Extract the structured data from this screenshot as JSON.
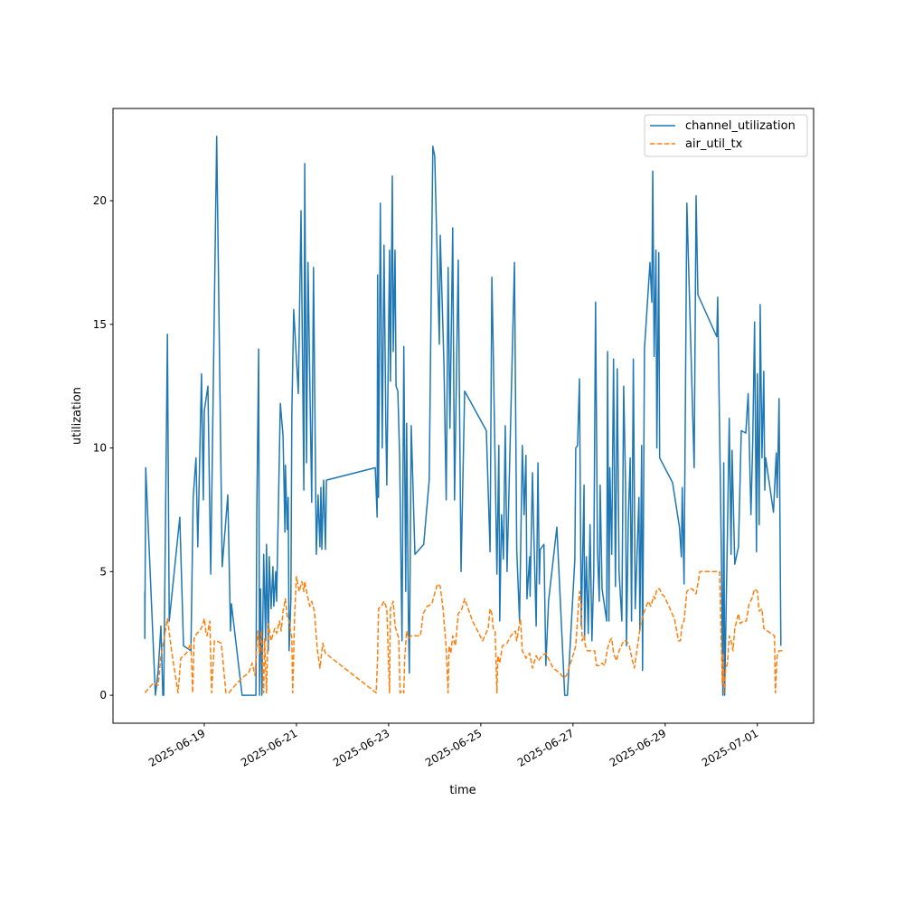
{
  "chart_data": {
    "type": "line",
    "title": "",
    "xlabel": "time",
    "ylabel": "utilization",
    "x_unit": "days since 2025-06-19 00:00",
    "xlim": [
      -1.98,
      13.22
    ],
    "ylim": [
      -1.13,
      23.73
    ],
    "grid": false,
    "legend_position": "top-right",
    "x_ticks": [
      {
        "value": 0,
        "label": "2025-06-19"
      },
      {
        "value": 2,
        "label": "2025-06-21"
      },
      {
        "value": 4,
        "label": "2025-06-23"
      },
      {
        "value": 6,
        "label": "2025-06-25"
      },
      {
        "value": 8,
        "label": "2025-06-27"
      },
      {
        "value": 10,
        "label": "2025-06-29"
      },
      {
        "value": 12,
        "label": "2025-07-01"
      }
    ],
    "y_ticks": [
      {
        "value": 0,
        "label": "0"
      },
      {
        "value": 5,
        "label": "5"
      },
      {
        "value": 10,
        "label": "10"
      },
      {
        "value": 15,
        "label": "15"
      },
      {
        "value": 20,
        "label": "20"
      }
    ],
    "series": [
      {
        "name": "channel_utilization",
        "color": "#1f77b4",
        "dash": "solid",
        "x": [
          -1.29,
          -1.29,
          -1.27,
          -1.06,
          -1.0,
          -0.94,
          -0.9,
          -0.88,
          -0.8,
          -0.76,
          -0.53,
          -0.45,
          -0.29,
          -0.24,
          -0.18,
          -0.14,
          -0.06,
          -0.02,
          0,
          0.08,
          0.14,
          0.27,
          0.39,
          0.51,
          0.57,
          0.59,
          0.82,
          1.12,
          1.14,
          1.18,
          1.2,
          1.22,
          1.25,
          1.29,
          1.33,
          1.35,
          1.39,
          1.41,
          1.45,
          1.49,
          1.51,
          1.55,
          1.57,
          1.65,
          1.71,
          1.75,
          1.76,
          1.8,
          1.82,
          1.84,
          1.88,
          1.9,
          1.94,
          2.04,
          2.1,
          2.16,
          2.18,
          2.22,
          2.25,
          2.33,
          2.37,
          2.43,
          2.47,
          2.51,
          2.53,
          2.55,
          2.59,
          2.63,
          2.65,
          3.71,
          3.75,
          3.76,
          3.78,
          3.82,
          3.86,
          3.9,
          3.94,
          3.96,
          4.02,
          4.04,
          4.08,
          4.1,
          4.14,
          4.16,
          4.2,
          4.24,
          4.29,
          4.33,
          4.37,
          4.39,
          4.43,
          4.45,
          4.49,
          4.57,
          4.76,
          4.88,
          4.96,
          5.0,
          5.1,
          5.12,
          5.2,
          5.25,
          5.29,
          5.33,
          5.39,
          5.43,
          5.51,
          5.57,
          5.65,
          6.12,
          6.2,
          6.24,
          6.27,
          6.35,
          6.39,
          6.41,
          6.45,
          6.49,
          6.53,
          6.57,
          6.73,
          6.78,
          6.84,
          6.9,
          6.94,
          6.98,
          7.0,
          7.06,
          7.07,
          7.12,
          7.14,
          7.2,
          7.24,
          7.27,
          7.29,
          7.37,
          7.41,
          7.47,
          7.65,
          7.82,
          7.88,
          8.04,
          8.06,
          8.1,
          8.14,
          8.18,
          8.24,
          8.25,
          8.29,
          8.33,
          8.37,
          8.41,
          8.45,
          8.49,
          8.53,
          8.57,
          8.59,
          8.63,
          8.73,
          8.75,
          8.78,
          8.8,
          8.84,
          8.88,
          8.92,
          8.96,
          9.0,
          9.06,
          9.1,
          9.14,
          9.16,
          9.2,
          9.24,
          9.27,
          9.31,
          9.35,
          9.43,
          9.45,
          9.49,
          9.51,
          9.55,
          9.67,
          9.71,
          9.73,
          9.76,
          9.8,
          9.82,
          9.86,
          9.88,
          10.16,
          10.31,
          10.35,
          10.37,
          10.41,
          10.47,
          10.63,
          10.67,
          10.71,
          11.12,
          11.14,
          11.22,
          11.25,
          11.27,
          11.29,
          11.35,
          11.39,
          11.43,
          11.45,
          11.51,
          11.59,
          11.65,
          11.75,
          11.8,
          11.86,
          11.9,
          11.94,
          11.98,
          12.0,
          12.04,
          12.06,
          12.1,
          12.14,
          12.16,
          12.18,
          12.35,
          12.41,
          12.43,
          12.47,
          12.51
        ],
        "y": [
          4.2,
          2.3,
          9.2,
          0,
          1,
          2.8,
          0,
          0,
          14.6,
          3,
          7.2,
          2,
          1.8,
          8,
          9.6,
          6,
          13,
          7.9,
          11.5,
          12.5,
          4.9,
          22.6,
          5.2,
          8.1,
          2.6,
          3.7,
          0,
          0,
          7.5,
          14,
          0,
          4.3,
          0,
          5.7,
          2.2,
          6.1,
          1.8,
          5.6,
          3.5,
          5.2,
          3.6,
          5,
          3.8,
          11.8,
          10.5,
          6.6,
          9.3,
          6.7,
          8,
          1.8,
          3.9,
          11.3,
          15.6,
          12.2,
          19.6,
          8.3,
          21.5,
          9.4,
          17.5,
          7.8,
          17.3,
          5.7,
          8.1,
          6,
          8.4,
          5.9,
          8.7,
          5.9,
          8.7,
          9.2,
          7.2,
          17,
          8,
          19.9,
          10,
          18.2,
          11,
          8.5,
          18,
          12.7,
          21,
          13.9,
          18,
          12.5,
          12.3,
          9.6,
          2.2,
          14.1,
          4.2,
          11,
          3,
          0.9,
          10.9,
          5.7,
          6.1,
          8.7,
          22.2,
          21.8,
          14.2,
          18.6,
          13.4,
          7.9,
          17.3,
          10.8,
          18.9,
          7.9,
          17.6,
          5,
          12.3,
          10.7,
          5.8,
          16.9,
          14,
          4.9,
          10.1,
          3,
          7.3,
          5.5,
          10.9,
          5,
          17.5,
          5.9,
          3,
          10.1,
          7.3,
          9.7,
          3.9,
          5.6,
          4,
          9,
          7.3,
          2.8,
          9.4,
          4.5,
          5.9,
          6.1,
          1.2,
          3.8,
          6.8,
          0,
          0,
          5.5,
          10,
          10.1,
          12.8,
          2.8,
          8.5,
          2.3,
          5.6,
          2.5,
          6.9,
          2.2,
          4.9,
          15.9,
          5.9,
          3.8,
          8.5,
          4.3,
          3,
          13.9,
          3,
          9.2,
          5.7,
          13.6,
          4.4,
          13.2,
          5,
          3,
          12.5,
          8.5,
          2,
          7.1,
          9.6,
          3,
          13.6,
          3.5,
          8,
          2.6,
          10.1,
          1,
          14,
          17.5,
          15.9,
          21.2,
          13.7,
          18,
          10,
          17.9,
          9.6,
          8.6,
          6.8,
          5.6,
          8.4,
          4.5,
          19.9,
          9.2,
          20.2,
          16.2,
          14.5,
          16.1,
          5.7,
          0,
          9.4,
          0,
          6.6,
          11.2,
          5.7,
          9.9,
          5.3,
          6,
          10.7,
          10.6,
          12.2,
          7.3,
          10.3,
          15.1,
          5.8,
          13,
          6.9,
          15.8,
          9.6,
          13.1,
          8.3,
          9.6,
          7.4,
          9.8,
          8,
          12,
          2
        ]
      },
      {
        "name": "air_util_tx",
        "color": "#ff7f0e",
        "dash": "dashed",
        "x": [
          -1.29,
          -1.1,
          -1.0,
          -0.94,
          -0.88,
          -0.8,
          -0.71,
          -0.57,
          -0.51,
          -0.39,
          -0.29,
          -0.25,
          -0.22,
          -0.16,
          -0.1,
          -0.04,
          0,
          0.04,
          0.06,
          0.12,
          0.16,
          0.22,
          0.27,
          0.37,
          0.47,
          0.53,
          0.67,
          0.82,
          0.96,
          1.04,
          1.1,
          1.16,
          1.2,
          1.24,
          1.29,
          1.31,
          1.35,
          1.39,
          1.45,
          1.53,
          1.57,
          1.63,
          1.67,
          1.71,
          1.76,
          1.8,
          1.84,
          1.9,
          1.92,
          1.96,
          2.0,
          2.06,
          2.12,
          2.16,
          2.18,
          2.24,
          2.29,
          2.33,
          2.39,
          2.45,
          2.51,
          2.57,
          2.63,
          3.73,
          3.76,
          3.78,
          3.84,
          3.9,
          3.96,
          4.02,
          4.04,
          4.1,
          4.14,
          4.22,
          4.25,
          4.31,
          4.33,
          4.35,
          4.39,
          4.43,
          4.49,
          4.69,
          4.75,
          4.84,
          4.94,
          4.98,
          5.06,
          5.12,
          5.18,
          5.25,
          5.29,
          5.31,
          5.35,
          5.39,
          5.45,
          5.51,
          5.59,
          5.65,
          5.82,
          6.04,
          6.16,
          6.2,
          6.24,
          6.27,
          6.31,
          6.35,
          6.37,
          6.41,
          6.47,
          6.57,
          6.65,
          6.75,
          6.78,
          6.86,
          6.9,
          6.98,
          7.06,
          7.12,
          7.2,
          7.25,
          7.33,
          7.41,
          7.57,
          7.71,
          7.8,
          7.86,
          8.0,
          8.06,
          8.14,
          8.18,
          8.2,
          8.24,
          8.27,
          8.31,
          8.47,
          8.51,
          8.57,
          8.63,
          8.69,
          8.75,
          8.8,
          8.84,
          8.88,
          8.94,
          9.0,
          9.1,
          9.16,
          9.22,
          9.29,
          9.33,
          9.37,
          9.47,
          9.53,
          9.63,
          9.69,
          9.75,
          9.78,
          9.82,
          9.88,
          9.92,
          9.98,
          10.08,
          10.2,
          10.29,
          10.33,
          10.37,
          10.41,
          10.47,
          10.53,
          10.59,
          10.67,
          10.71,
          10.75,
          10.86,
          11.1,
          11.18,
          11.24,
          11.25,
          11.27,
          11.31,
          11.35,
          11.39,
          11.43,
          11.47,
          11.51,
          11.55,
          11.59,
          11.63,
          11.69,
          11.76,
          11.82,
          11.88,
          11.94,
          12.0,
          12.04,
          12.1,
          12.14,
          12.37,
          12.39,
          12.43,
          12.47,
          12.55
        ],
        "y": [
          0.1,
          0.5,
          0.4,
          1.6,
          2.2,
          3.1,
          1.8,
          0.1,
          1.5,
          1.7,
          2.1,
          0.1,
          2.3,
          2.5,
          2.6,
          2.8,
          3.1,
          2.5,
          2.4,
          3.0,
          0.1,
          2.2,
          2.2,
          2.1,
          0.1,
          0.1,
          0.4,
          0.7,
          0.9,
          1.3,
          0.8,
          2.6,
          1.7,
          2.6,
          0.1,
          2.3,
          0.1,
          2.9,
          2.2,
          2.7,
          2.5,
          3.0,
          2.6,
          3.4,
          3.9,
          3.2,
          3.0,
          2.3,
          0.1,
          3.2,
          4.8,
          4.2,
          4.6,
          4.2,
          4.6,
          4.0,
          3.6,
          3.8,
          3.4,
          1.9,
          1.1,
          2.1,
          1.7,
          0.1,
          1.5,
          3.5,
          3.6,
          3.8,
          3.5,
          0.1,
          3.5,
          3.8,
          2.8,
          2.3,
          0.1,
          0.2,
          0.1,
          1.5,
          2.6,
          2.3,
          2.4,
          2.4,
          3.3,
          3.6,
          3.7,
          4.0,
          4.5,
          4.4,
          3.5,
          1.9,
          0.1,
          2.0,
          1.7,
          2.4,
          2.0,
          3.3,
          3.5,
          3.9,
          3.0,
          2.2,
          2.7,
          3.5,
          3.3,
          2.7,
          2.6,
          0.1,
          1.6,
          1.3,
          2.0,
          2.1,
          2.4,
          2.6,
          2.2,
          3.1,
          1.8,
          1.5,
          1.7,
          1.1,
          1.6,
          1.4,
          1.6,
          1.7,
          1.1,
          0.9,
          0.7,
          0.8,
          1.6,
          2.0,
          4.2,
          3.6,
          2.2,
          2.4,
          2.0,
          1.8,
          1.8,
          1.2,
          1.2,
          1.3,
          1.2,
          1.9,
          2.2,
          2.3,
          1.7,
          1.4,
          1.8,
          2.2,
          2.2,
          2.0,
          1.4,
          1.1,
          1.6,
          2.9,
          3.3,
          3.8,
          3.6,
          4.0,
          3.9,
          4.3,
          4.3,
          4.1,
          4.0,
          3.6,
          3.1,
          2.2,
          2.2,
          2.9,
          3.0,
          4.2,
          4.3,
          4.3,
          4.1,
          4.5,
          5.0,
          5.0,
          5.0,
          5.0,
          0.5,
          1.7,
          0.1,
          1.0,
          1.3,
          2.4,
          2.2,
          1.8,
          2.7,
          3.0,
          3.3,
          2.9,
          3.0,
          3.0,
          3.7,
          3.9,
          4.3,
          4.2,
          3.4,
          3.5,
          2.7,
          2.4,
          0.1,
          1.6,
          1.8,
          1.8
        ]
      }
    ]
  }
}
